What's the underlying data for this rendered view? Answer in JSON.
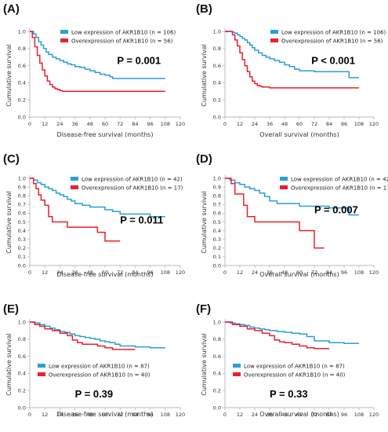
{
  "colors": {
    "low": "#2a9fd6",
    "over": "#e8212e"
  },
  "chart_data": [
    {
      "panel": "(A)",
      "type": "line",
      "xlabel": "Disease-free survival (months)",
      "ylabel": "Cumulative survival",
      "xlim": [
        0,
        120
      ],
      "ylim": [
        0,
        1.0
      ],
      "xticks": [
        0,
        12,
        24,
        36,
        48,
        60,
        72,
        84,
        96,
        108,
        120
      ],
      "yticks": [
        "0.0",
        "0.2",
        "0.4",
        "0.6",
        "0.8",
        "1.0"
      ],
      "legend_position": "top-right",
      "pvalue": "P = 0.001",
      "pvalue_position": [
        0.58,
        0.62
      ],
      "series": [
        {
          "name": "Low expression of AKR1B10 (n = 106)",
          "color": "low",
          "x": [
            0,
            3,
            5,
            7,
            9,
            11,
            13,
            15,
            18,
            21,
            24,
            27,
            30,
            33,
            36,
            40,
            44,
            48,
            52,
            56,
            60,
            64,
            66,
            108
          ],
          "y": [
            1.0,
            0.97,
            0.93,
            0.88,
            0.84,
            0.8,
            0.76,
            0.73,
            0.7,
            0.68,
            0.66,
            0.64,
            0.62,
            0.61,
            0.59,
            0.58,
            0.56,
            0.54,
            0.52,
            0.5,
            0.49,
            0.47,
            0.45,
            0.45
          ]
        },
        {
          "name": "Overexpression of AKR1B10 (n = 56)",
          "color": "over",
          "x": [
            0,
            2,
            4,
            6,
            8,
            10,
            12,
            14,
            16,
            18,
            20,
            22,
            24,
            26,
            108
          ],
          "y": [
            1.0,
            0.93,
            0.82,
            0.72,
            0.63,
            0.55,
            0.48,
            0.42,
            0.38,
            0.35,
            0.33,
            0.32,
            0.31,
            0.3,
            0.3
          ]
        }
      ]
    },
    {
      "panel": "(B)",
      "type": "line",
      "xlabel": "Overall survival (months)",
      "ylabel": "Cumulative survival",
      "xlim": [
        0,
        120
      ],
      "ylim": [
        0,
        1.0
      ],
      "xticks": [
        0,
        12,
        24,
        36,
        48,
        60,
        72,
        84,
        96,
        108,
        120
      ],
      "yticks": [
        "0.0",
        "0.2",
        "0.4",
        "0.6",
        "0.8",
        "1.0"
      ],
      "legend_position": "top-right",
      "pvalue": "P < 0.001",
      "pvalue_position": [
        0.58,
        0.62
      ],
      "series": [
        {
          "name": "Low expression of AKR1B10 (n = 106)",
          "color": "low",
          "x": [
            0,
            4,
            6,
            8,
            10,
            12,
            14,
            16,
            18,
            20,
            22,
            24,
            27,
            30,
            33,
            36,
            40,
            44,
            48,
            52,
            56,
            60,
            72,
            84,
            96,
            100,
            108
          ],
          "y": [
            1.0,
            1.0,
            0.99,
            0.98,
            0.96,
            0.94,
            0.92,
            0.9,
            0.87,
            0.84,
            0.81,
            0.78,
            0.75,
            0.72,
            0.7,
            0.68,
            0.66,
            0.64,
            0.61,
            0.59,
            0.56,
            0.54,
            0.53,
            0.53,
            0.53,
            0.46,
            0.46
          ]
        },
        {
          "name": "Overexpression of AKR1B10 (n = 56)",
          "color": "over",
          "x": [
            0,
            6,
            8,
            10,
            12,
            14,
            16,
            18,
            20,
            22,
            24,
            26,
            28,
            30,
            36,
            48,
            60,
            108
          ],
          "y": [
            1.0,
            0.96,
            0.9,
            0.83,
            0.75,
            0.67,
            0.6,
            0.53,
            0.47,
            0.42,
            0.39,
            0.37,
            0.36,
            0.35,
            0.34,
            0.34,
            0.34,
            0.34
          ]
        }
      ]
    },
    {
      "panel": "(C)",
      "type": "line",
      "xlabel": "Disease-free survival (months)",
      "ylabel": "Cumulative survival",
      "xlim": [
        0,
        120
      ],
      "ylim": [
        0,
        1.0
      ],
      "xticks": [
        0,
        12,
        24,
        36,
        48,
        60,
        72,
        84,
        96,
        108,
        120
      ],
      "yticks": [
        "0.0",
        "0.1",
        "0.2",
        "0.3",
        "0.4",
        "0.5",
        "0.6",
        "0.7",
        "0.8",
        "0.9",
        "1.0"
      ],
      "legend_position": "top-right",
      "pvalue": "P = 0.011",
      "pvalue_position": [
        0.6,
        0.48
      ],
      "series": [
        {
          "name": "Low expression of AKR1B10 (n = 42)",
          "color": "low",
          "x": [
            0,
            3,
            6,
            9,
            12,
            15,
            18,
            21,
            24,
            27,
            30,
            33,
            36,
            42,
            48,
            54,
            60,
            66,
            72,
            84,
            96,
            108
          ],
          "y": [
            1.0,
            0.98,
            0.95,
            0.93,
            0.9,
            0.88,
            0.86,
            0.83,
            0.81,
            0.79,
            0.76,
            0.74,
            0.71,
            0.69,
            0.67,
            0.67,
            0.64,
            0.62,
            0.59,
            0.59,
            0.56,
            0.56
          ]
        },
        {
          "name": "Overexpression of AKR1B10 (n = 17)",
          "color": "over",
          "x": [
            0,
            3,
            5,
            7,
            9,
            12,
            15,
            18,
            24,
            30,
            48,
            54,
            60,
            72
          ],
          "y": [
            1.0,
            0.94,
            0.88,
            0.81,
            0.75,
            0.69,
            0.56,
            0.5,
            0.5,
            0.44,
            0.44,
            0.38,
            0.28,
            0.28
          ]
        }
      ]
    },
    {
      "panel": "(D)",
      "type": "line",
      "xlabel": "Overall survival (months)",
      "ylabel": "Cumulative survival",
      "xlim": [
        0,
        120
      ],
      "ylim": [
        0,
        1.0
      ],
      "xticks": [
        0,
        12,
        24,
        36,
        48,
        60,
        72,
        84,
        96,
        108,
        120
      ],
      "yticks": [
        "0.0",
        "0.1",
        "0.2",
        "0.3",
        "0.4",
        "0.5",
        "0.6",
        "0.7",
        "0.8",
        "0.9",
        "1.0"
      ],
      "legend_position": "top-right",
      "pvalue": "P = 0.007",
      "pvalue_position": [
        0.6,
        0.6
      ],
      "series": [
        {
          "name": "Low expression of AKR1B10 (n = 42)",
          "color": "low",
          "x": [
            0,
            4,
            8,
            12,
            16,
            20,
            24,
            28,
            32,
            36,
            42,
            48,
            60,
            72,
            84,
            96,
            100,
            108
          ],
          "y": [
            1.0,
            0.98,
            0.95,
            0.93,
            0.9,
            0.88,
            0.86,
            0.83,
            0.79,
            0.74,
            0.71,
            0.71,
            0.68,
            0.68,
            0.66,
            0.66,
            0.58,
            0.58
          ]
        },
        {
          "name": "Overexpression of AKR1B10 (n = 17)",
          "color": "over",
          "x": [
            0,
            5,
            8,
            12,
            15,
            18,
            24,
            30,
            36,
            48,
            60,
            66,
            72,
            76,
            80
          ],
          "y": [
            1.0,
            0.94,
            0.82,
            0.82,
            0.69,
            0.56,
            0.5,
            0.5,
            0.5,
            0.5,
            0.4,
            0.4,
            0.2,
            0.2,
            0.2
          ]
        }
      ]
    },
    {
      "panel": "(E)",
      "type": "line",
      "xlabel": "Disease-free survival (months)",
      "ylabel": "Cumulative survival",
      "xlim": [
        0,
        120
      ],
      "ylim": [
        0,
        1.0
      ],
      "xticks": [
        0,
        12,
        24,
        36,
        48,
        60,
        72,
        84,
        96,
        108,
        120
      ],
      "yticks": [
        "0.0",
        "0.2",
        "0.4",
        "0.6",
        "0.8",
        "1.0"
      ],
      "legend_position": "bottom-left",
      "pvalue": "P = 0.39",
      "pvalue_position": [
        0.3,
        0.12
      ],
      "series": [
        {
          "name": "Low expression of AKR1B10 (n = 87)",
          "color": "low",
          "x": [
            0,
            4,
            8,
            12,
            16,
            20,
            24,
            28,
            32,
            36,
            40,
            44,
            48,
            52,
            56,
            60,
            64,
            68,
            72,
            84,
            96,
            108
          ],
          "y": [
            1.0,
            0.99,
            0.97,
            0.95,
            0.93,
            0.91,
            0.89,
            0.88,
            0.86,
            0.84,
            0.83,
            0.82,
            0.81,
            0.8,
            0.78,
            0.77,
            0.76,
            0.74,
            0.72,
            0.71,
            0.7,
            0.7
          ]
        },
        {
          "name": "Overexpression of AKR1B10 (n = 40)",
          "color": "over",
          "x": [
            0,
            4,
            8,
            12,
            18,
            24,
            30,
            34,
            38,
            42,
            48,
            54,
            60,
            66,
            72,
            84
          ],
          "y": [
            1.0,
            0.97,
            0.95,
            0.92,
            0.9,
            0.87,
            0.84,
            0.79,
            0.76,
            0.74,
            0.74,
            0.72,
            0.7,
            0.68,
            0.68,
            0.68
          ]
        }
      ]
    },
    {
      "panel": "(F)",
      "type": "line",
      "xlabel": "Overall survival (months)",
      "ylabel": "Cumulative survival",
      "xlim": [
        0,
        120
      ],
      "ylim": [
        0,
        1.0
      ],
      "xticks": [
        0,
        12,
        24,
        36,
        48,
        60,
        72,
        84,
        96,
        108,
        120
      ],
      "yticks": [
        "0.0",
        "0.2",
        "0.4",
        "0.6",
        "0.8",
        "1.0"
      ],
      "legend_position": "bottom-left",
      "pvalue": "P = 0.33",
      "pvalue_position": [
        0.3,
        0.12
      ],
      "series": [
        {
          "name": "Low expression of AKR1B10 (n = 87)",
          "color": "low",
          "x": [
            0,
            4,
            8,
            12,
            16,
            20,
            24,
            28,
            32,
            36,
            42,
            48,
            54,
            60,
            66,
            72,
            84,
            96,
            108
          ],
          "y": [
            1.0,
            0.99,
            0.98,
            0.97,
            0.96,
            0.94,
            0.93,
            0.92,
            0.91,
            0.9,
            0.89,
            0.88,
            0.87,
            0.86,
            0.83,
            0.78,
            0.76,
            0.75,
            0.75
          ]
        },
        {
          "name": "Overexpression of AKR1B10 (n = 40)",
          "color": "over",
          "x": [
            0,
            6,
            12,
            18,
            24,
            30,
            36,
            40,
            44,
            48,
            54,
            60,
            66,
            72,
            84
          ],
          "y": [
            1.0,
            0.97,
            0.95,
            0.92,
            0.9,
            0.87,
            0.84,
            0.79,
            0.77,
            0.76,
            0.74,
            0.72,
            0.7,
            0.69,
            0.69
          ]
        }
      ]
    }
  ]
}
